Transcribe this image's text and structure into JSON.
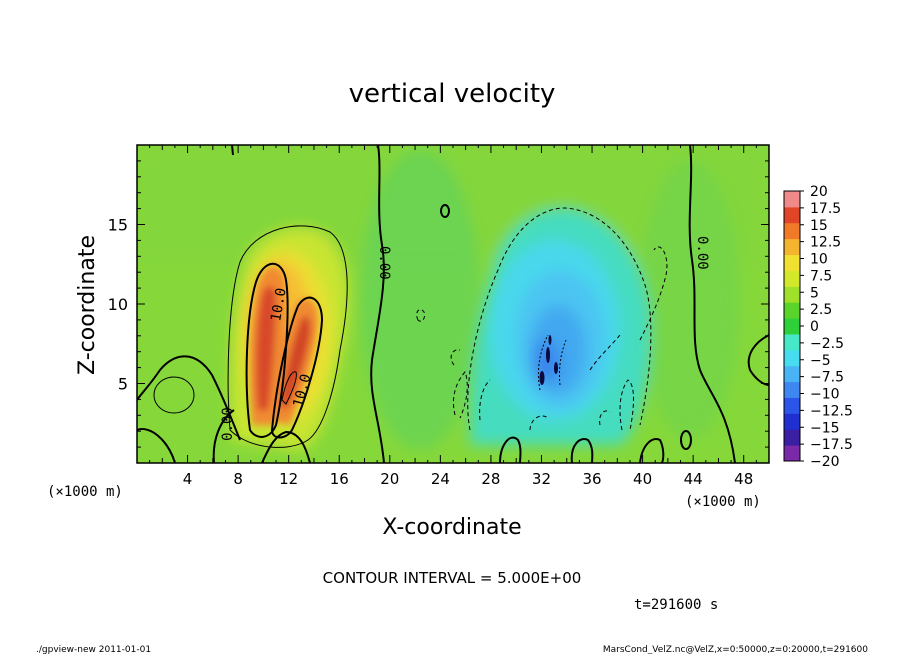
{
  "chart_data": {
    "type": "heatmap",
    "title": "vertical velocity",
    "xlabel": "X-coordinate",
    "ylabel": "Z-coordinate",
    "x_unit": "(×1000 m)",
    "y_unit": "(×1000 m)",
    "xlim": [
      0,
      50
    ],
    "ylim": [
      0,
      20
    ],
    "x_ticks": [
      4,
      8,
      12,
      16,
      20,
      24,
      28,
      32,
      36,
      40,
      44,
      48
    ],
    "y_ticks": [
      5,
      10,
      15
    ],
    "contour_labels": [
      "10.0",
      "10.0",
      "0.00",
      "0.00",
      "0.00"
    ],
    "colorbar": {
      "levels": [
        -20,
        -17.5,
        -15,
        -12.5,
        -10,
        -7.5,
        -5,
        -2.5,
        0,
        2.5,
        5,
        7.5,
        10,
        12.5,
        15,
        17.5,
        20
      ],
      "labels": [
        "20",
        "17.5",
        "15",
        "12.5",
        "10",
        "7.5",
        "5",
        "2.5",
        "0",
        "−2.5",
        "−5",
        "−7.5",
        "−10",
        "−12.5",
        "−15",
        "−17.5",
        "−20"
      ],
      "colors": [
        "#7a2aa8",
        "#3a1fa3",
        "#1f2fd0",
        "#2a55e8",
        "#3f87f0",
        "#49b4f5",
        "#48dcf0",
        "#46e8c8",
        "#2ed03a",
        "#5ad42a",
        "#9ee02a",
        "#d4e82a",
        "#f0e030",
        "#f5b430",
        "#f07a28",
        "#e04528",
        "#f08a8a"
      ]
    },
    "updraft_max": 14,
    "downdraft_min": -15
  },
  "annotations": {
    "contour_interval": "CONTOUR INTERVAL = 5.000E+00",
    "time": "t=291600 s",
    "footer_left": "./gpview-new   2011-01-01",
    "footer_right": "MarsCond_VelZ.nc@VelZ,x=0:50000,z=0:20000,t=291600"
  }
}
